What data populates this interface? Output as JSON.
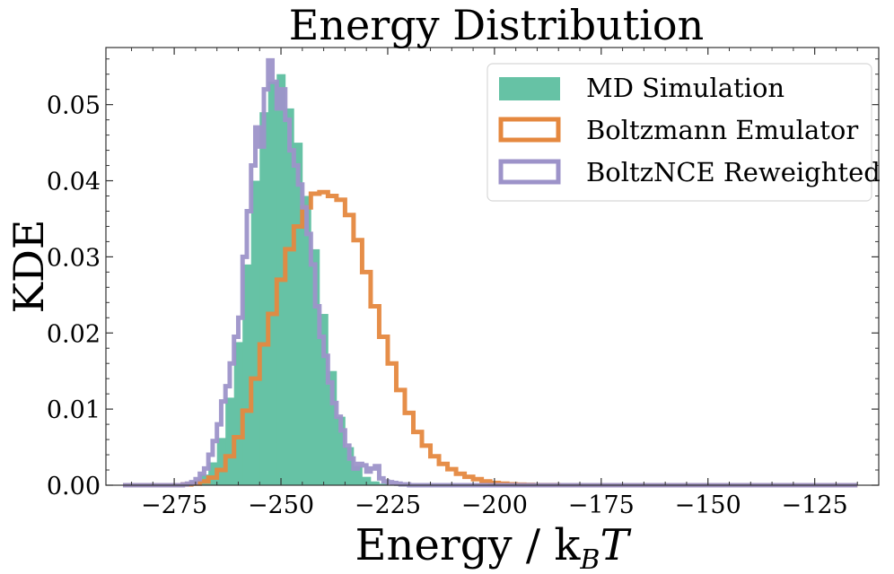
{
  "chart_data": {
    "type": "histogram",
    "title": "Energy Distribution",
    "xlabel": "Energy / k",
    "xlabel_sub": "B",
    "xlabel_tail": "T",
    "ylabel": "KDE",
    "xlim": [
      -291,
      -110
    ],
    "ylim": [
      0,
      0.0575
    ],
    "xticks": [
      -275,
      -250,
      -225,
      -200,
      -175,
      -150,
      -125
    ],
    "xtick_labels": [
      "−275",
      "−250",
      "−225",
      "−200",
      "−175",
      "−150",
      "−125"
    ],
    "yticks": [
      0,
      0.01,
      0.02,
      0.03,
      0.04,
      0.05
    ],
    "ytick_labels": [
      "0.00",
      "0.01",
      "0.02",
      "0.03",
      "0.04",
      "0.05"
    ],
    "legend_position": "top-right",
    "series": [
      {
        "name": "MD Simulation",
        "style": "filled",
        "color": "#66c2a5",
        "x_edges": [
          -273,
          -271,
          -269,
          -267,
          -265,
          -263,
          -261,
          -259,
          -257,
          -255,
          -253,
          -251,
          -249,
          -247,
          -245,
          -243,
          -241,
          -239,
          -237,
          -235,
          -233,
          -231,
          -229,
          -227,
          -225
        ],
        "values": [
          0.0002,
          0.0006,
          0.0014,
          0.003,
          0.0062,
          0.0115,
          0.0188,
          0.029,
          0.04,
          0.049,
          0.053,
          0.054,
          0.0495,
          0.045,
          0.038,
          0.031,
          0.0225,
          0.015,
          0.009,
          0.005,
          0.0025,
          0.0011,
          0.0005,
          0.0002
        ]
      },
      {
        "name": "Boltzmann Emulator",
        "style": "step",
        "color": "#e5883f",
        "x_edges": [
          -287,
          -285,
          -283,
          -281,
          -279,
          -277,
          -275,
          -273,
          -271,
          -269,
          -267,
          -265,
          -263,
          -261,
          -259,
          -257,
          -255,
          -253,
          -251,
          -249,
          -247,
          -245,
          -243,
          -241,
          -239,
          -237,
          -235,
          -233,
          -231,
          -229,
          -227,
          -225,
          -223,
          -221,
          -219,
          -217,
          -215,
          -213,
          -211,
          -209,
          -207,
          -205,
          -203,
          -201,
          -199,
          -197,
          -195,
          -193,
          -191,
          -189,
          -187,
          -185,
          -183,
          -181,
          -179,
          -177,
          -175,
          -115
        ],
        "values": [
          0,
          0,
          0,
          0,
          0,
          0,
          0,
          0.0001,
          0.0002,
          0.0005,
          0.001,
          0.002,
          0.0038,
          0.0063,
          0.0098,
          0.014,
          0.0185,
          0.0225,
          0.027,
          0.031,
          0.034,
          0.0365,
          0.0383,
          0.0385,
          0.038,
          0.0375,
          0.0355,
          0.0322,
          0.028,
          0.0235,
          0.0195,
          0.016,
          0.0125,
          0.0095,
          0.007,
          0.0052,
          0.0038,
          0.0028,
          0.0021,
          0.0015,
          0.0011,
          0.0008,
          0.0005,
          0.0003,
          0.0002,
          0.00012,
          7e-05,
          4e-05,
          2e-05,
          1e-05,
          1e-05,
          0,
          0,
          0,
          0,
          0,
          0
        ]
      },
      {
        "name": "BoltzNCE Reweighted",
        "style": "step",
        "color": "#9d93c9",
        "x_edges": [
          -287,
          -273,
          -272,
          -271,
          -270,
          -269,
          -268,
          -267,
          -266,
          -265,
          -264,
          -263,
          -262,
          -261,
          -260,
          -259,
          -258,
          -257,
          -256,
          -255,
          -254,
          -253,
          -252,
          -251,
          -250,
          -249,
          -248,
          -247,
          -246,
          -245,
          -244,
          -243,
          -242,
          -241,
          -240,
          -239,
          -238,
          -237,
          -236,
          -235,
          -234,
          -233,
          -232,
          -231,
          -230,
          -229,
          -228,
          -227,
          -226,
          -225,
          -224,
          -223,
          -222,
          -221,
          -220,
          -219,
          -218,
          -115
        ],
        "values": [
          0,
          0.0001,
          0.0002,
          0.0004,
          0.0008,
          0.0015,
          0.0022,
          0.004,
          0.0058,
          0.008,
          0.011,
          0.013,
          0.016,
          0.0195,
          0.022,
          0.03,
          0.036,
          0.042,
          0.047,
          0.0445,
          0.052,
          0.0558,
          0.053,
          0.0495,
          0.052,
          0.048,
          0.044,
          0.042,
          0.0395,
          0.0365,
          0.033,
          0.029,
          0.0235,
          0.0195,
          0.017,
          0.0135,
          0.0108,
          0.009,
          0.0072,
          0.0052,
          0.0035,
          0.0022,
          0.0028,
          0.0026,
          0.0018,
          0.0022,
          0.0025,
          0.0009,
          0.0005,
          0.0004,
          0.0003,
          0.0002,
          0.0001,
          0.0001,
          0,
          0,
          0
        ]
      }
    ]
  }
}
